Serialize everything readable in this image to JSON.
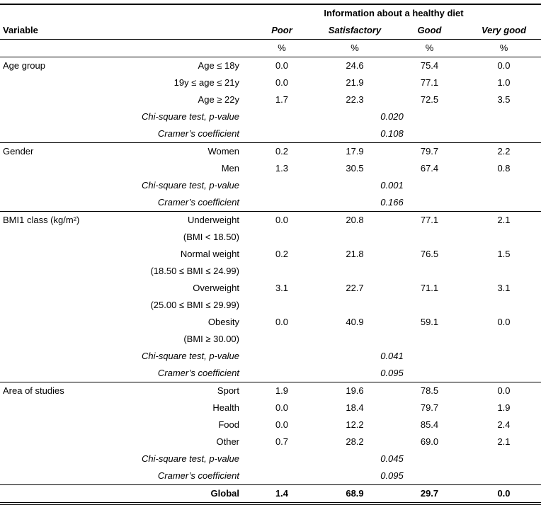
{
  "table": {
    "span_header": "Information about a healthy diet",
    "variable_header": "Variable",
    "columns": [
      "Poor",
      "Satisfactory",
      "Good",
      "Very good"
    ],
    "percent_symbol": "%",
    "groups": [
      {
        "name": "Age group",
        "rows": [
          {
            "label": "Age ≤ 18y",
            "values": [
              "0.0",
              "24.6",
              "75.4",
              "0.0"
            ]
          },
          {
            "label": "19y ≤ age ≤ 21y",
            "values": [
              "0.0",
              "21.9",
              "77.1",
              "1.0"
            ]
          },
          {
            "label": "Age ≥ 22y",
            "values": [
              "1.7",
              "22.3",
              "72.5",
              "3.5"
            ]
          }
        ],
        "stats": [
          {
            "label": "Chi-square test, p-value",
            "value": "0.020"
          },
          {
            "label": "Cramer’s coefficient",
            "value": "0.108"
          }
        ]
      },
      {
        "name": "Gender",
        "rows": [
          {
            "label": "Women",
            "values": [
              "0.2",
              "17.9",
              "79.7",
              "2.2"
            ]
          },
          {
            "label": "Men",
            "values": [
              "1.3",
              "30.5",
              "67.4",
              "0.8"
            ]
          }
        ],
        "stats": [
          {
            "label": "Chi-square test, p-value",
            "value": "0.001"
          },
          {
            "label": "Cramer’s coefficient",
            "value": "0.166"
          }
        ]
      },
      {
        "name": "BMI1 class (kg/m²)",
        "rows": [
          {
            "label": "Underweight",
            "sublabel": "(BMI < 18.50)",
            "values": [
              "0.0",
              "20.8",
              "77.1",
              "2.1"
            ]
          },
          {
            "label": "Normal weight",
            "sublabel": "(18.50 ≤ BMI ≤ 24.99)",
            "values": [
              "0.2",
              "21.8",
              "76.5",
              "1.5"
            ]
          },
          {
            "label": "Overweight",
            "sublabel": "(25.00 ≤ BMI ≤ 29.99)",
            "values": [
              "3.1",
              "22.7",
              "71.1",
              "3.1"
            ]
          },
          {
            "label": "Obesity",
            "sublabel": "(BMI ≥ 30.00)",
            "values": [
              "0.0",
              "40.9",
              "59.1",
              "0.0"
            ]
          }
        ],
        "stats": [
          {
            "label": "Chi-square test, p-value",
            "value": "0.041"
          },
          {
            "label": "Cramer’s coefficient",
            "value": "0.095"
          }
        ]
      },
      {
        "name": "Area of studies",
        "rows": [
          {
            "label": "Sport",
            "values": [
              "1.9",
              "19.6",
              "78.5",
              "0.0"
            ]
          },
          {
            "label": "Health",
            "values": [
              "0.0",
              "18.4",
              "79.7",
              "1.9"
            ]
          },
          {
            "label": "Food",
            "values": [
              "0.0",
              "12.2",
              "85.4",
              "2.4"
            ]
          },
          {
            "label": "Other",
            "values": [
              "0.7",
              "28.2",
              "69.0",
              "2.1"
            ]
          }
        ],
        "stats": [
          {
            "label": "Chi-square test, p-value",
            "value": "0.045"
          },
          {
            "label": "Cramer’s coefficient",
            "value": "0.095"
          }
        ]
      }
    ],
    "global_row": {
      "label": "Global",
      "values": [
        "1.4",
        "68.9",
        "29.7",
        "0.0"
      ]
    }
  }
}
